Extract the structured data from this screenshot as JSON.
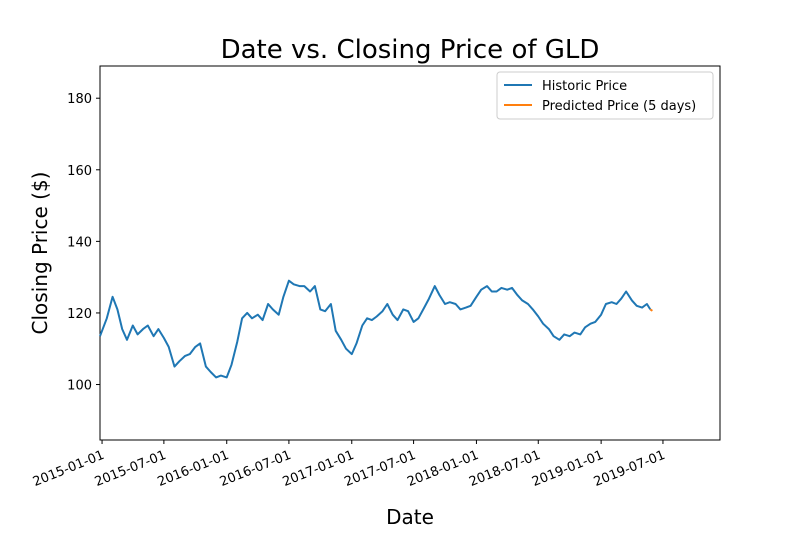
{
  "chart_data": {
    "type": "line",
    "title": "Date vs. Closing Price of GLD",
    "xlabel": "Date",
    "ylabel": "Closing Price ($)",
    "xlim": [
      "2014-12-26",
      "2019-12-15"
    ],
    "ylim": [
      84.5,
      189
    ],
    "grid": false,
    "legend_position": "top-right",
    "x_ticks": [
      "2015-01-01",
      "2015-07-01",
      "2016-01-01",
      "2016-07-01",
      "2017-01-01",
      "2017-07-01",
      "2018-01-01",
      "2018-07-01",
      "2019-01-01",
      "2019-07-01"
    ],
    "y_ticks": [
      100,
      120,
      140,
      160,
      180
    ],
    "series": [
      {
        "name": "Historic Price",
        "color": "#1f77b4",
        "x": [
          "2014-12-26",
          "2015-01-15",
          "2015-02-01",
          "2015-02-15",
          "2015-03-01",
          "2015-03-15",
          "2015-04-01",
          "2015-04-15",
          "2015-05-01",
          "2015-05-15",
          "2015-06-01",
          "2015-06-15",
          "2015-07-01",
          "2015-07-15",
          "2015-08-01",
          "2015-08-15",
          "2015-09-01",
          "2015-09-15",
          "2015-10-01",
          "2015-10-15",
          "2015-11-01",
          "2015-11-15",
          "2015-12-01",
          "2015-12-15",
          "2016-01-01",
          "2016-01-15",
          "2016-02-01",
          "2016-02-15",
          "2016-03-01",
          "2016-03-15",
          "2016-04-01",
          "2016-04-15",
          "2016-05-01",
          "2016-05-15",
          "2016-06-01",
          "2016-06-15",
          "2016-07-01",
          "2016-07-15",
          "2016-08-01",
          "2016-08-15",
          "2016-09-01",
          "2016-09-15",
          "2016-10-01",
          "2016-10-15",
          "2016-11-01",
          "2016-11-15",
          "2016-12-01",
          "2016-12-15",
          "2017-01-01",
          "2017-01-15",
          "2017-02-01",
          "2017-02-15",
          "2017-03-01",
          "2017-03-15",
          "2017-04-01",
          "2017-04-15",
          "2017-05-01",
          "2017-05-15",
          "2017-06-01",
          "2017-06-15",
          "2017-07-01",
          "2017-07-15",
          "2017-08-01",
          "2017-08-15",
          "2017-09-01",
          "2017-09-15",
          "2017-10-01",
          "2017-10-15",
          "2017-11-01",
          "2017-11-15",
          "2017-12-01",
          "2017-12-15",
          "2018-01-01",
          "2018-01-15",
          "2018-02-01",
          "2018-02-15",
          "2018-03-01",
          "2018-03-15",
          "2018-04-01",
          "2018-04-15",
          "2018-05-01",
          "2018-05-15",
          "2018-06-01",
          "2018-06-15",
          "2018-07-01",
          "2018-07-15",
          "2018-08-01",
          "2018-08-15",
          "2018-09-01",
          "2018-09-15",
          "2018-10-01",
          "2018-10-15",
          "2018-11-01",
          "2018-11-15",
          "2018-12-01",
          "2018-12-15",
          "2019-01-01",
          "2019-01-15",
          "2019-02-01",
          "2019-02-15",
          "2019-03-01",
          "2019-03-15",
          "2019-04-01",
          "2019-04-15",
          "2019-05-01",
          "2019-05-15",
          "2019-05-25"
        ],
        "values": [
          113.5,
          118.5,
          124.5,
          121,
          115.5,
          112.5,
          116.5,
          114,
          115.5,
          116.5,
          113.5,
          115.5,
          113,
          110.5,
          105,
          106.5,
          108,
          108.5,
          110.5,
          111.5,
          105,
          103.5,
          102,
          102.5,
          102,
          105.5,
          112,
          118.5,
          120,
          118.5,
          119.5,
          118,
          122.5,
          121,
          119.5,
          124.5,
          129,
          128,
          127.5,
          127.5,
          126,
          127.5,
          121,
          120.5,
          122.5,
          115,
          112.5,
          110,
          108.5,
          111.5,
          116.5,
          118.5,
          118,
          119,
          120.5,
          122.5,
          119.5,
          118,
          121,
          120.5,
          117.5,
          118.5,
          121.5,
          124,
          127.5,
          125,
          122.5,
          123,
          122.5,
          121,
          121.5,
          122,
          124.5,
          126.5,
          127.5,
          126,
          126,
          127,
          126.5,
          127,
          125,
          123.5,
          122.5,
          121,
          119,
          117,
          115.5,
          113.5,
          112.5,
          114,
          113.5,
          114.5,
          114,
          116,
          117,
          117.5,
          119.5,
          122.5,
          123,
          122.5,
          124,
          126,
          123.5,
          122,
          121.5,
          122.5,
          121
        ]
      },
      {
        "name": "Predicted Price (5 days)",
        "color": "#ff7f0e",
        "x": [
          "2019-05-25",
          "2019-05-31"
        ],
        "values": [
          121,
          120.6
        ]
      }
    ]
  }
}
